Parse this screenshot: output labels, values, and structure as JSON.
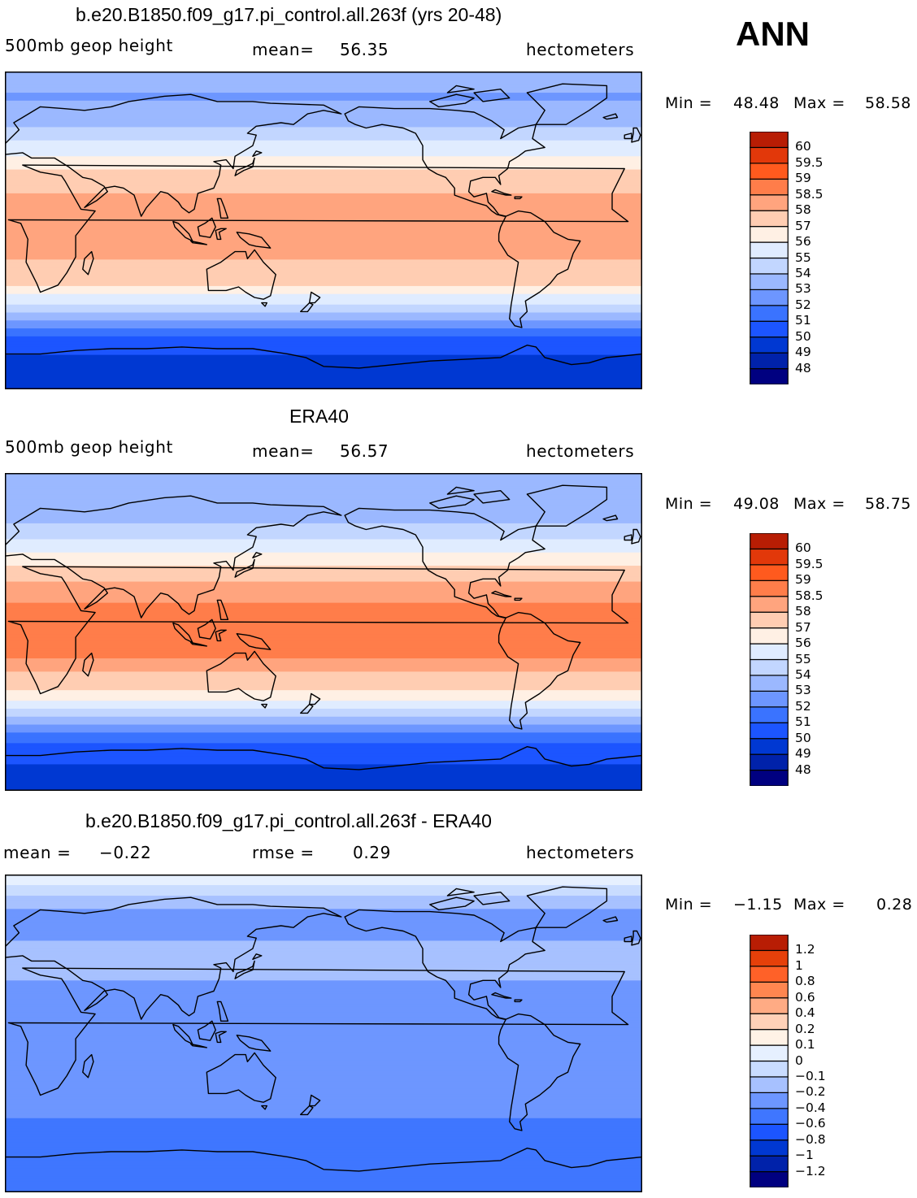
{
  "season": "ANN",
  "units": "hectometers",
  "colors": {
    "abs_scale": [
      "#000080",
      "#0022aa",
      "#0038d2",
      "#1c55ff",
      "#3a73ff",
      "#6d96ff",
      "#9bb8ff",
      "#c2d6ff",
      "#e0ecff",
      "#fff0e4",
      "#ffcdb2",
      "#ffa47e",
      "#ff7d4a",
      "#ff5a1e",
      "#e2380a",
      "#b81d04",
      "#800000"
    ],
    "diff_scale": [
      "#000080",
      "#0022aa",
      "#0038d2",
      "#1c55ff",
      "#3f76ff",
      "#6d96ff",
      "#a7c1ff",
      "#c9dcff",
      "#e6f0ff",
      "#fff2e6",
      "#ffd1b8",
      "#ffab84",
      "#ff8650",
      "#ff6128",
      "#e6400a",
      "#b81d04",
      "#800000"
    ],
    "coast": "#000000"
  },
  "chart_data": [
    {
      "type": "heatmap",
      "title": "b.e20.B1850.f09_g17.pi_control.all.263f (yrs 20-48)",
      "left_label": "500mb geop height",
      "stat_label": "mean=",
      "stat_value": "56.35",
      "units": "hectometers",
      "min_label": "Min =",
      "min_value": "48.48",
      "max_label": "Max =",
      "max_value": "58.58",
      "colorbar_levels": [
        "48",
        "49",
        "50",
        "51",
        "52",
        "53",
        "54",
        "55",
        "56",
        "57",
        "58",
        "58.5",
        "59",
        "59.5",
        "60"
      ],
      "zonal_profile": [
        {
          "lat": 90,
          "value": 53.4
        },
        {
          "lat": 75,
          "value": 52.9
        },
        {
          "lat": 60,
          "value": 53.9
        },
        {
          "lat": 45,
          "value": 55.6
        },
        {
          "lat": 30,
          "value": 57.6
        },
        {
          "lat": 15,
          "value": 58.3
        },
        {
          "lat": 0,
          "value": 58.2
        },
        {
          "lat": -15,
          "value": 58.1
        },
        {
          "lat": -30,
          "value": 57.2
        },
        {
          "lat": -45,
          "value": 54.5
        },
        {
          "lat": -60,
          "value": 51.0
        },
        {
          "lat": -75,
          "value": 49.6
        },
        {
          "lat": -90,
          "value": 49.3
        }
      ]
    },
    {
      "type": "heatmap",
      "title": "ERA40",
      "left_label": "500mb geop height",
      "stat_label": "mean=",
      "stat_value": "56.57",
      "units": "hectometers",
      "min_label": "Min =",
      "min_value": "49.08",
      "max_label": "Max =",
      "max_value": "58.75",
      "colorbar_levels": [
        "48",
        "49",
        "50",
        "51",
        "52",
        "53",
        "54",
        "55",
        "56",
        "57",
        "58",
        "58.5",
        "59",
        "59.5",
        "60"
      ],
      "zonal_profile": [
        {
          "lat": 90,
          "value": 53.5
        },
        {
          "lat": 75,
          "value": 53.2
        },
        {
          "lat": 60,
          "value": 54.1
        },
        {
          "lat": 45,
          "value": 55.9
        },
        {
          "lat": 30,
          "value": 57.9
        },
        {
          "lat": 15,
          "value": 58.6
        },
        {
          "lat": 0,
          "value": 58.6
        },
        {
          "lat": -15,
          "value": 58.5
        },
        {
          "lat": -30,
          "value": 57.5
        },
        {
          "lat": -45,
          "value": 54.8
        },
        {
          "lat": -60,
          "value": 51.3
        },
        {
          "lat": -75,
          "value": 50.0
        },
        {
          "lat": -90,
          "value": 49.8
        }
      ]
    },
    {
      "type": "heatmap",
      "title": "b.e20.B1850.f09_g17.pi_control.all.263f - ERA40",
      "left_label": "mean =",
      "left_value": "−0.22",
      "stat_label": "rmse =",
      "stat_value": "0.29",
      "units": "hectometers",
      "min_label": "Min =",
      "min_value": "−1.15",
      "max_label": "Max =",
      "max_value": "0.28",
      "colorbar_levels": [
        "−1.2",
        "−1",
        "−0.8",
        "−0.6",
        "−0.4",
        "−0.2",
        "−0.1",
        "0",
        "0.1",
        "0.2",
        "0.4",
        "0.6",
        "0.8",
        "1",
        "1.2"
      ],
      "zonal_profile": [
        {
          "lat": 90,
          "value": 0.1
        },
        {
          "lat": 75,
          "value": -0.15
        },
        {
          "lat": 60,
          "value": -0.3
        },
        {
          "lat": 45,
          "value": -0.1
        },
        {
          "lat": 30,
          "value": -0.2
        },
        {
          "lat": 15,
          "value": -0.25
        },
        {
          "lat": 0,
          "value": -0.3
        },
        {
          "lat": -15,
          "value": -0.25
        },
        {
          "lat": -30,
          "value": -0.2
        },
        {
          "lat": -45,
          "value": -0.35
        },
        {
          "lat": -60,
          "value": -0.6
        },
        {
          "lat": -75,
          "value": -0.45
        },
        {
          "lat": -90,
          "value": -0.4
        }
      ]
    }
  ]
}
